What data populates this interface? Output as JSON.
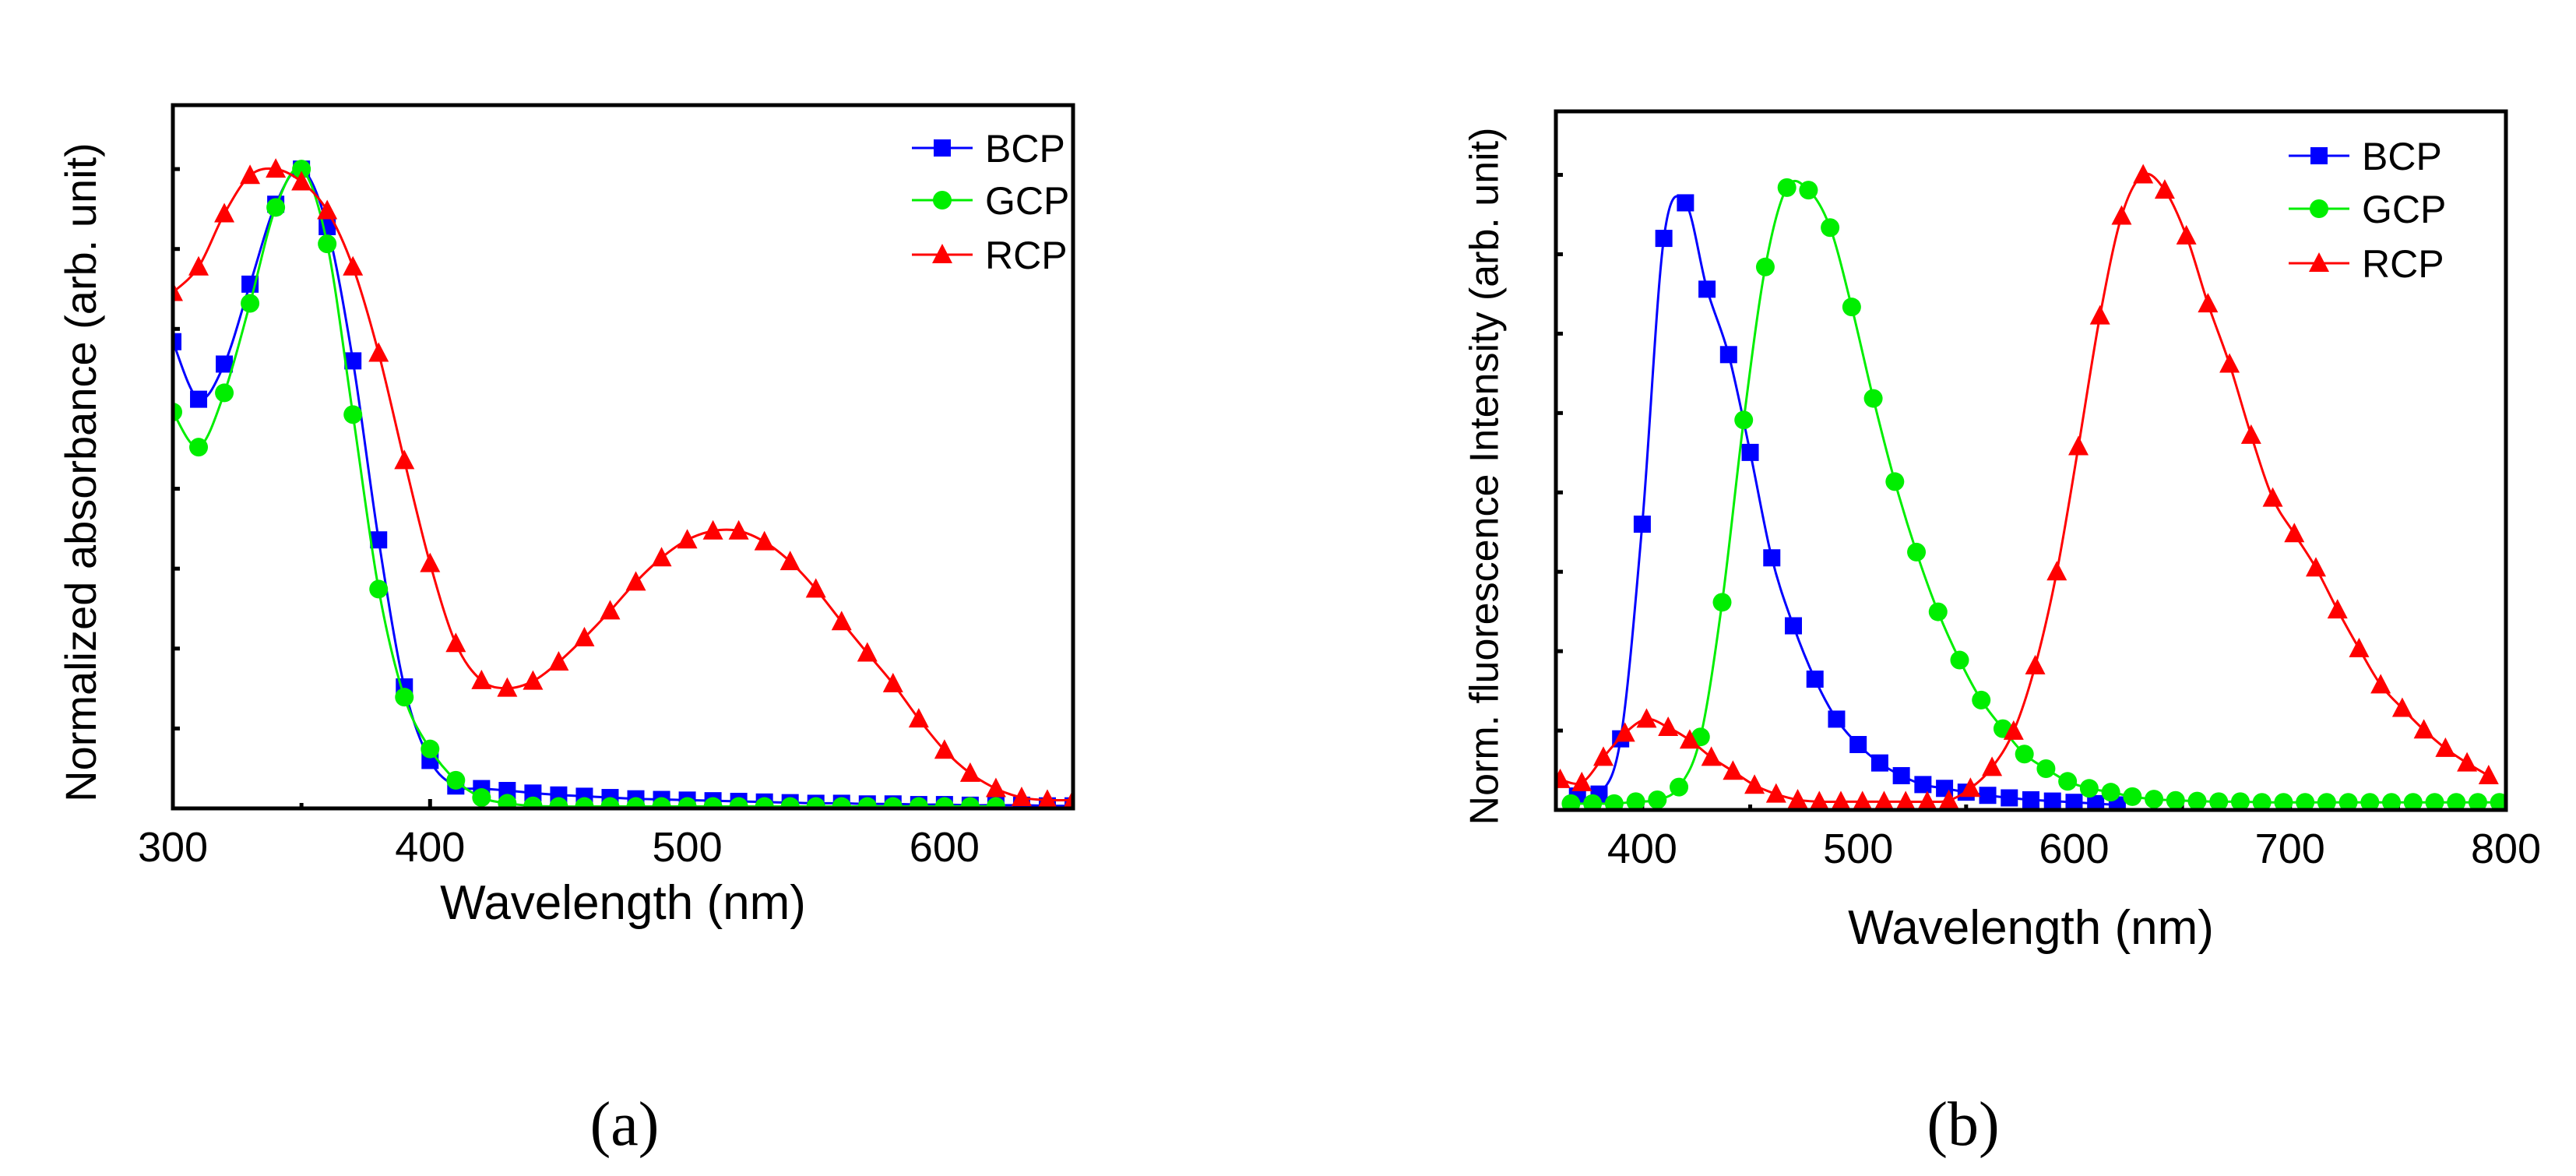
{
  "chart_data": [
    {
      "type": "line",
      "panel_label": "(a)",
      "xlabel": "Wavelength (nm)",
      "ylabel": "Normalized absorbance (arb. unit)",
      "xlim": [
        300,
        650
      ],
      "ylim": [
        0,
        1.1
      ],
      "x_ticks": [
        300,
        400,
        500,
        600
      ],
      "x_minor_ticks": [
        350,
        450,
        550
      ],
      "y_ticks": [
        0.125,
        0.25,
        0.375,
        0.5,
        0.625,
        0.75,
        0.875,
        1.0
      ],
      "y_tick_labels_shown": false,
      "legend": {
        "placement": "top-right",
        "entries": [
          "BCP",
          "GCP",
          "RCP"
        ]
      },
      "series": [
        {
          "name": "BCP",
          "color": "#0000ff",
          "marker": "square",
          "x": [
            300,
            310,
            320,
            330,
            340,
            350,
            360,
            370,
            380,
            390,
            400,
            410,
            420,
            430,
            440,
            450,
            460,
            470,
            480,
            490,
            500,
            510,
            520,
            530,
            540,
            550,
            560,
            570,
            580,
            590,
            600,
            610,
            620,
            630,
            640,
            650
          ],
          "y": [
            0.73,
            0.64,
            0.695,
            0.82,
            0.945,
            1.0,
            0.91,
            0.7,
            0.42,
            0.19,
            0.075,
            0.035,
            0.031,
            0.028,
            0.024,
            0.021,
            0.019,
            0.017,
            0.015,
            0.014,
            0.013,
            0.012,
            0.011,
            0.01,
            0.009,
            0.008,
            0.008,
            0.007,
            0.007,
            0.006,
            0.006,
            0.005,
            0.005,
            0.005,
            0.004,
            0.004
          ]
        },
        {
          "name": "GCP",
          "color": "#00ee00",
          "marker": "circle",
          "x": [
            300,
            310,
            320,
            330,
            340,
            350,
            360,
            370,
            380,
            390,
            400,
            410,
            420,
            430,
            440,
            450,
            460,
            470,
            480,
            490,
            500,
            510,
            520,
            530,
            540,
            550,
            560,
            570,
            580,
            590,
            600,
            610,
            620
          ],
          "y": [
            0.62,
            0.565,
            0.65,
            0.79,
            0.94,
            1.0,
            0.883,
            0.616,
            0.343,
            0.174,
            0.093,
            0.044,
            0.017,
            0.008,
            0.004,
            0.003,
            0.003,
            0.003,
            0.003,
            0.003,
            0.003,
            0.003,
            0.003,
            0.003,
            0.003,
            0.003,
            0.003,
            0.003,
            0.003,
            0.003,
            0.003,
            0.003,
            0.003
          ]
        },
        {
          "name": "RCP",
          "color": "#ff0000",
          "marker": "triangle",
          "x": [
            300,
            310,
            320,
            330,
            340,
            350,
            360,
            370,
            380,
            390,
            400,
            410,
            420,
            430,
            440,
            450,
            460,
            470,
            480,
            490,
            500,
            510,
            520,
            530,
            540,
            550,
            560,
            570,
            580,
            590,
            600,
            610,
            620,
            630,
            640,
            650
          ],
          "y": [
            0.807,
            0.847,
            0.93,
            0.99,
            1.0,
            0.98,
            0.935,
            0.847,
            0.712,
            0.544,
            0.383,
            0.258,
            0.2,
            0.188,
            0.199,
            0.229,
            0.267,
            0.309,
            0.354,
            0.392,
            0.42,
            0.434,
            0.434,
            0.417,
            0.386,
            0.343,
            0.292,
            0.243,
            0.195,
            0.14,
            0.091,
            0.055,
            0.031,
            0.017,
            0.013,
            0.013
          ]
        }
      ]
    },
    {
      "type": "line",
      "panel_label": "(b)",
      "xlabel": "Wavelength (nm)",
      "ylabel": "Norm. fluorescence Intensity (arb. unit)",
      "xlim": [
        360,
        800
      ],
      "ylim": [
        0,
        1.1
      ],
      "x_ticks": [
        400,
        500,
        600,
        700,
        800
      ],
      "x_minor_ticks": [
        450,
        550,
        650,
        750
      ],
      "y_ticks": [
        0.125,
        0.25,
        0.375,
        0.5,
        0.625,
        0.75,
        0.875,
        1.0
      ],
      "y_tick_labels_shown": false,
      "legend": {
        "placement": "top-right",
        "entries": [
          "BCP",
          "GCP",
          "RCP"
        ]
      },
      "series": [
        {
          "name": "BCP",
          "color": "#0000ff",
          "marker": "square",
          "x": [
            370,
            380,
            390,
            400,
            410,
            420,
            430,
            440,
            450,
            460,
            470,
            480,
            490,
            500,
            510,
            520,
            530,
            540,
            550,
            560,
            570,
            580,
            590,
            600,
            610,
            620
          ],
          "y": [
            0.022,
            0.025,
            0.112,
            0.45,
            0.9,
            0.956,
            0.82,
            0.717,
            0.563,
            0.397,
            0.29,
            0.206,
            0.143,
            0.103,
            0.074,
            0.054,
            0.04,
            0.034,
            0.028,
            0.023,
            0.019,
            0.016,
            0.014,
            0.012,
            0.01,
            0.008
          ]
        },
        {
          "name": "GCP",
          "color": "#00ee00",
          "marker": "circle",
          "x": [
            367,
            377,
            387,
            397,
            407,
            417,
            427,
            437,
            447,
            457,
            467,
            477,
            487,
            497,
            507,
            517,
            527,
            537,
            547,
            557,
            567,
            577,
            587,
            597,
            607,
            617,
            627,
            637,
            647,
            657,
            667,
            677,
            687,
            697,
            707,
            717,
            727,
            737,
            747,
            757,
            767,
            777,
            787,
            797
          ],
          "y": [
            0.01,
            0.01,
            0.01,
            0.013,
            0.016,
            0.036,
            0.115,
            0.327,
            0.614,
            0.855,
            0.98,
            0.976,
            0.917,
            0.792,
            0.648,
            0.517,
            0.406,
            0.312,
            0.236,
            0.173,
            0.128,
            0.088,
            0.065,
            0.045,
            0.034,
            0.028,
            0.021,
            0.017,
            0.015,
            0.014,
            0.013,
            0.013,
            0.012,
            0.012,
            0.012,
            0.012,
            0.012,
            0.012,
            0.012,
            0.012,
            0.012,
            0.012,
            0.012,
            0.012
          ]
        },
        {
          "name": "RCP",
          "color": "#ff0000",
          "marker": "triangle",
          "x": [
            362,
            372,
            382,
            392,
            402,
            412,
            422,
            432,
            442,
            452,
            462,
            472,
            482,
            492,
            502,
            512,
            522,
            532,
            542,
            552,
            562,
            572,
            582,
            592,
            602,
            612,
            622,
            632,
            642,
            652,
            662,
            672,
            682,
            692,
            702,
            712,
            722,
            732,
            742,
            752,
            762,
            772,
            782,
            792
          ],
          "y": [
            0.048,
            0.043,
            0.083,
            0.121,
            0.143,
            0.13,
            0.11,
            0.083,
            0.061,
            0.039,
            0.025,
            0.016,
            0.013,
            0.013,
            0.013,
            0.013,
            0.013,
            0.013,
            0.015,
            0.034,
            0.067,
            0.124,
            0.227,
            0.375,
            0.572,
            0.778,
            0.935,
            1.0,
            0.976,
            0.904,
            0.797,
            0.702,
            0.59,
            0.491,
            0.435,
            0.381,
            0.315,
            0.254,
            0.197,
            0.16,
            0.126,
            0.097,
            0.074,
            0.054
          ]
        }
      ]
    }
  ]
}
